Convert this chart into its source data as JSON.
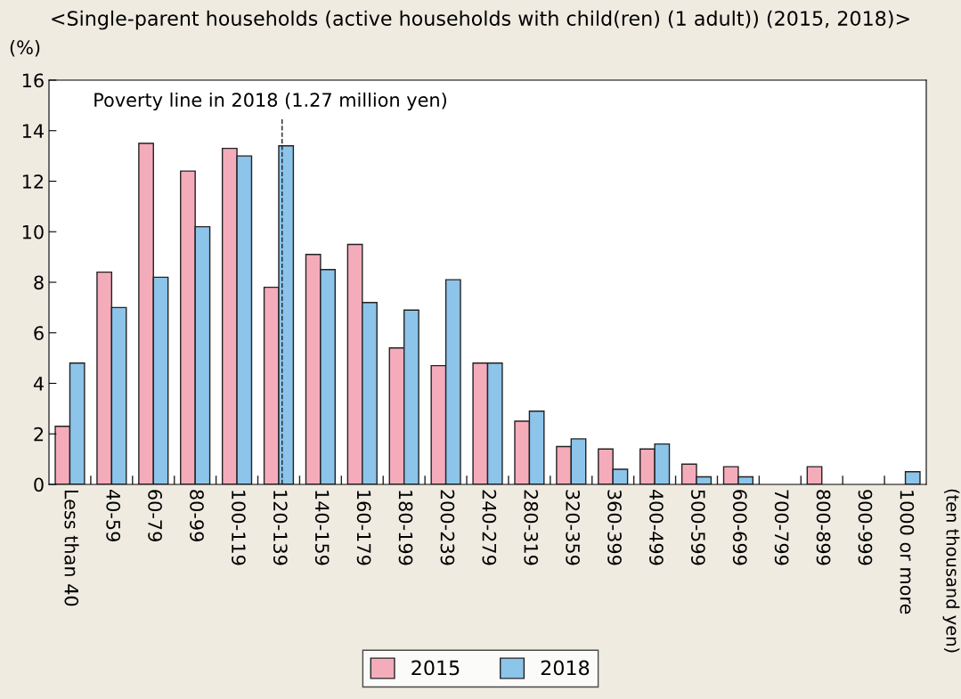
{
  "chart_data": {
    "type": "bar",
    "title": "<Single-parent households (active households with child(ren) (1 adult)) (2015, 2018)>",
    "ylabel": "(%)",
    "annotations": [
      "(ten thousand yen)"
    ],
    "categories": [
      "Less than 40",
      "40-59",
      "60-79",
      "80-99",
      "100-119",
      "120-139",
      "140-159",
      "160-179",
      "180-199",
      "200-239",
      "240-279",
      "280-319",
      "320-359",
      "360-399",
      "400-499",
      "500-599",
      "600-699",
      "700-799",
      "800-899",
      "900-999",
      "1000 or more"
    ],
    "series": [
      {
        "name": "2015",
        "color": "#f4acbb",
        "values": [
          2.3,
          8.4,
          13.5,
          12.4,
          13.3,
          7.8,
          9.1,
          9.5,
          5.4,
          4.7,
          4.8,
          2.5,
          1.5,
          1.4,
          1.4,
          0.8,
          0.7,
          0,
          0.7,
          0,
          0
        ]
      },
      {
        "name": "2018",
        "color": "#8cc4ea",
        "values": [
          4.8,
          7.0,
          8.2,
          10.2,
          13.0,
          13.4,
          8.5,
          7.2,
          6.9,
          8.1,
          4.8,
          2.9,
          1.8,
          0.6,
          1.6,
          0.3,
          0.3,
          0,
          0,
          0,
          0.5
        ]
      }
    ],
    "ylim": [
      0,
      16
    ],
    "yticks": [
      0,
      2,
      4,
      6,
      8,
      10,
      12,
      14,
      16
    ],
    "ref_lines": [
      {
        "axis": "x",
        "value": "120-139",
        "label": "Poverty line in 2018 (1.27 million yen)",
        "line_style": "dashed",
        "color": "#222222"
      }
    ],
    "legend": "bottom",
    "grid": false
  }
}
